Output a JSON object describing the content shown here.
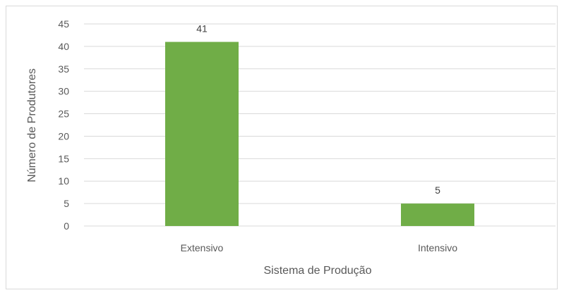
{
  "chart_data": {
    "type": "bar",
    "categories": [
      "Extensivo",
      "Intensivo"
    ],
    "values": [
      41,
      5
    ],
    "data_labels": [
      "41",
      "5"
    ],
    "xlabel": "Sistema de Produção",
    "ylabel": "Número de Produtores",
    "ylim": [
      0,
      45
    ],
    "yticks": [
      0,
      5,
      10,
      15,
      20,
      25,
      30,
      35,
      40,
      45
    ],
    "ytick_labels": [
      "0",
      "5",
      "10",
      "15",
      "20",
      "25",
      "30",
      "35",
      "40",
      "45"
    ],
    "grid": true,
    "legend": "none",
    "bar_color": "#70ad47",
    "grid_color": "#d9d9d9"
  }
}
